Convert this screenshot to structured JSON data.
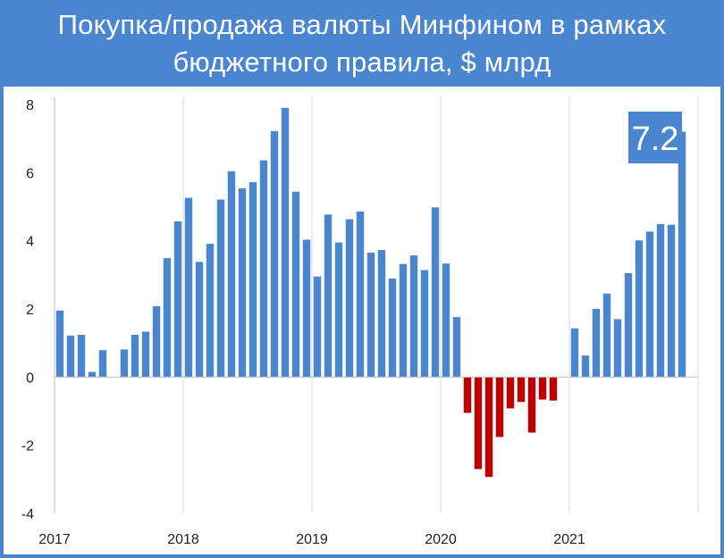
{
  "chart_data": {
    "type": "bar",
    "title": "Покупка/продажа валюты Минфином в рамках бюджетного правила, $ млрд",
    "xlabel": "",
    "ylabel": "",
    "ylim": [
      -4,
      8
    ],
    "yticks": [
      8,
      6,
      4,
      2,
      0,
      -2,
      -4
    ],
    "xticks": [
      "2017",
      "2018",
      "2019",
      "2020",
      "2021"
    ],
    "grid": "vertical",
    "colors": {
      "positive": "#4a86d0",
      "negative": "#c00000",
      "grid": "#d9d9d9",
      "callout": "#4a86d0"
    },
    "callout": "7.2",
    "categories": [
      "2017-01",
      "2017-02",
      "2017-03",
      "2017-04",
      "2017-05",
      "2017-06",
      "2017-07",
      "2017-08",
      "2017-09",
      "2017-10",
      "2017-11",
      "2017-12",
      "2018-01",
      "2018-02",
      "2018-03",
      "2018-04",
      "2018-05",
      "2018-06",
      "2018-07",
      "2018-08",
      "2018-09",
      "2018-10",
      "2018-11",
      "2018-12",
      "2019-01",
      "2019-02",
      "2019-03",
      "2019-04",
      "2019-05",
      "2019-06",
      "2019-07",
      "2019-08",
      "2019-09",
      "2019-10",
      "2019-11",
      "2019-12",
      "2020-01",
      "2020-02",
      "2020-03",
      "2020-04",
      "2020-05",
      "2020-06",
      "2020-07",
      "2020-08",
      "2020-09",
      "2020-10",
      "2020-11",
      "2020-12",
      "2021-01",
      "2021-02",
      "2021-03",
      "2021-04",
      "2021-05",
      "2021-06",
      "2021-07",
      "2021-08",
      "2021-09",
      "2021-10",
      "2021-11",
      "2021-12"
    ],
    "values": [
      1.95,
      1.22,
      1.24,
      0.15,
      0.79,
      0,
      0.81,
      1.24,
      1.33,
      2.08,
      3.49,
      4.57,
      5.26,
      3.38,
      3.91,
      5.21,
      6.04,
      5.54,
      5.72,
      6.36,
      7.22,
      7.9,
      5.44,
      4.03,
      2.95,
      4.77,
      3.95,
      4.63,
      4.86,
      3.65,
      3.73,
      2.89,
      3.32,
      3.57,
      3.14,
      4.98,
      3.33,
      1.76,
      -1.05,
      -2.7,
      -2.93,
      -1.76,
      -0.92,
      -0.73,
      -1.63,
      -0.66,
      -0.69,
      0,
      1.43,
      0.63,
      2.0,
      2.45,
      1.7,
      3.05,
      4.01,
      4.27,
      4.49,
      4.47,
      7.2,
      0
    ]
  }
}
